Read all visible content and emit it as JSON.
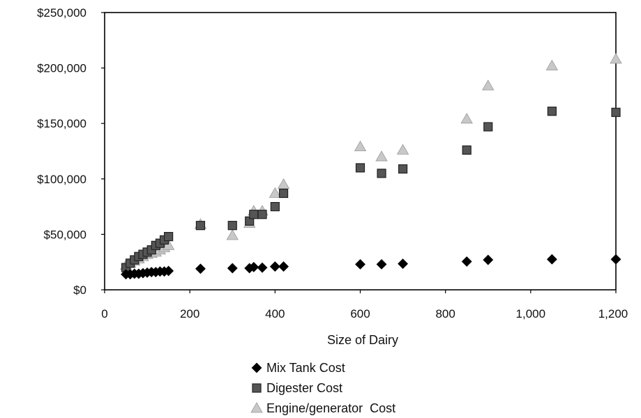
{
  "chart_data": {
    "type": "scatter",
    "xlabel": "Size of Dairy",
    "ylabel": "",
    "xlim": [
      0,
      1200
    ],
    "ylim": [
      0,
      250000
    ],
    "x_ticks": [
      0,
      200,
      400,
      600,
      800,
      1000,
      1200
    ],
    "x_tick_labels": [
      "0",
      "200",
      "400",
      "600",
      "800",
      "1,000",
      "1,200"
    ],
    "y_ticks": [
      0,
      50000,
      100000,
      150000,
      200000,
      250000
    ],
    "y_tick_labels": [
      "$0",
      "$50,000",
      "$100,000",
      "$150,000",
      "$200,000",
      "$250,000"
    ],
    "grid": false,
    "legend_position": "bottom-center",
    "series": [
      {
        "name": "Mix Tank Cost",
        "marker": "diamond",
        "color": "#000000",
        "x": [
          50,
          60,
          70,
          80,
          90,
          100,
          110,
          120,
          130,
          140,
          150,
          225,
          300,
          340,
          350,
          370,
          400,
          420,
          600,
          650,
          700,
          850,
          900,
          1050,
          1200
        ],
        "y": [
          14000,
          14000,
          14500,
          14500,
          15000,
          15500,
          16000,
          16000,
          16500,
          16500,
          17000,
          19000,
          19500,
          19500,
          20500,
          20000,
          21000,
          21000,
          23000,
          23000,
          23500,
          25500,
          27000,
          27500,
          27500
        ]
      },
      {
        "name": "Digester Cost",
        "marker": "square",
        "color": "#555555",
        "x": [
          50,
          60,
          70,
          80,
          90,
          100,
          110,
          120,
          130,
          140,
          150,
          225,
          300,
          340,
          350,
          370,
          400,
          420,
          600,
          650,
          700,
          850,
          900,
          1050,
          1200
        ],
        "y": [
          20000,
          24000,
          27000,
          30000,
          32000,
          34000,
          36000,
          40000,
          42000,
          45000,
          48000,
          58000,
          58000,
          62000,
          68000,
          68000,
          75000,
          87000,
          110000,
          105000,
          109000,
          126000,
          147000,
          161000,
          160000
        ]
      },
      {
        "name": "Engine/generator  Cost",
        "marker": "triangle",
        "color": "#c8c8c8",
        "x": [
          50,
          60,
          70,
          80,
          90,
          100,
          110,
          120,
          130,
          140,
          150,
          225,
          300,
          340,
          350,
          370,
          400,
          420,
          600,
          650,
          700,
          850,
          900,
          1050,
          1200
        ],
        "y": [
          22000,
          24000,
          26000,
          28000,
          30000,
          32000,
          33000,
          34000,
          36000,
          38000,
          40000,
          59000,
          49000,
          60000,
          71000,
          71000,
          87000,
          95000,
          129000,
          120000,
          126000,
          154000,
          184000,
          202000,
          208000
        ]
      }
    ]
  }
}
